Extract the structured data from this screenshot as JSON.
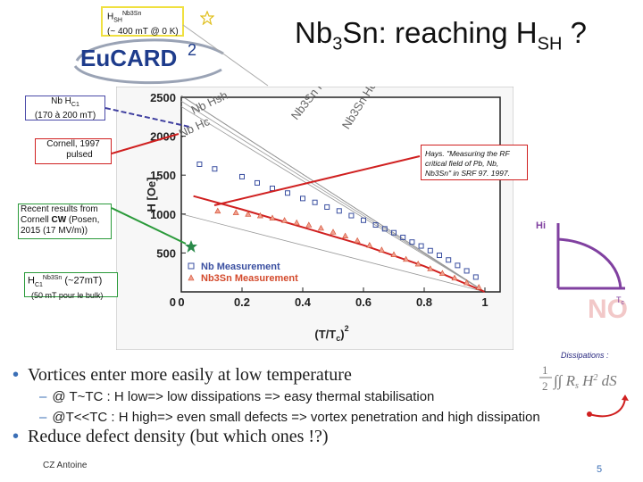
{
  "title": {
    "main": "Nb",
    "sub3": "3",
    "mid": "Sn: reaching H",
    "subSH": "SH",
    "end": " ?"
  },
  "logo": {
    "text": "EuCARD",
    "sup": "2"
  },
  "hsh_box": {
    "line1_main": "H",
    "line1_sub": "SH",
    "line1_sup": "Nb3Sn",
    "line2": "(~ 400 mT @ 0 K)"
  },
  "nb_hc1_box": {
    "line1_main": "Nb H",
    "line1_sub": "C1",
    "line2": "(170 à 200 mT)"
  },
  "cornell_box": {
    "line1": "Cornell, 1997",
    "line2": "pulsed"
  },
  "recent_box": {
    "line1": "Recent results from",
    "line2_a": "Cornell ",
    "line2_b": "CW",
    "line2_c": " (Posen,",
    "line3": "2015 (17 MV/m))"
  },
  "hc1_box": {
    "main": "H",
    "sub": "C1",
    "sup": "Nb3Sn",
    "rest": " (~27mT)",
    "line2": "(50 mT pour le bulk)"
  },
  "hays_box": {
    "text": "Hays. \"Measuring the RF critical field of Pb, Nb, Nb3Sn\" in SRF 97. 1997."
  },
  "inset": {
    "ylabel": "Hi",
    "xlabel": "T",
    "xsub": "c",
    "overlay": "NO"
  },
  "dissipations": {
    "label": "Dissipations :",
    "formula_frac_num": "1",
    "formula_frac_den": "2",
    "formula_body": "∫∫ R",
    "formula_s": "s",
    "formula_h": " H",
    "formula_sq": "2",
    "formula_ds": " dS"
  },
  "bullets": [
    {
      "text": "Vortices enter more easily at low temperature"
    },
    {
      "text": "@ T~TC : H low=> low dissipations => easy thermal stabilisation"
    },
    {
      "text": "@T<<TC : H high=> even small defects => vortex penetration and high dissipation"
    },
    {
      "text": "Reduce defect density (but which ones !?)"
    }
  ],
  "footer": {
    "name": "CZ Antoine",
    "page": "5"
  },
  "chart_data": {
    "type": "scatter",
    "xlabel": "(T/T",
    "xlabel_sub": "c",
    "xlabel_sup": "2",
    "xlabel_close": ")",
    "ylabel": "H [Oe]",
    "xlim": [
      0,
      1.05
    ],
    "ylim": [
      0,
      2500
    ],
    "x_ticks": [
      "0",
      "0.2",
      "0.4",
      "0.6",
      "0.8",
      "1"
    ],
    "y_ticks": [
      "500",
      "1000",
      "1500",
      "2000",
      "2500"
    ],
    "line_labels": [
      "Nb Hsh",
      "Nb Hc",
      "Nb3Sn Hsh",
      "Nb3Sn Hc"
    ],
    "series": [
      {
        "name": "Nb Measurement",
        "marker": "square",
        "color": "#3a4fa0",
        "points": [
          [
            0.06,
            1640
          ],
          [
            0.11,
            1580
          ],
          [
            0.2,
            1480
          ],
          [
            0.25,
            1400
          ],
          [
            0.3,
            1330
          ],
          [
            0.35,
            1270
          ],
          [
            0.4,
            1200
          ],
          [
            0.44,
            1150
          ],
          [
            0.48,
            1090
          ],
          [
            0.52,
            1040
          ],
          [
            0.56,
            980
          ],
          [
            0.6,
            920
          ],
          [
            0.64,
            860
          ],
          [
            0.67,
            810
          ],
          [
            0.7,
            760
          ],
          [
            0.73,
            700
          ],
          [
            0.76,
            640
          ],
          [
            0.79,
            590
          ],
          [
            0.82,
            530
          ],
          [
            0.85,
            470
          ],
          [
            0.88,
            410
          ],
          [
            0.91,
            340
          ],
          [
            0.94,
            270
          ],
          [
            0.97,
            190
          ]
        ]
      },
      {
        "name": "Nb3Sn Measurement",
        "marker": "triangle",
        "color": "#d34a2c",
        "points": [
          [
            0.12,
            1040
          ],
          [
            0.18,
            1020
          ],
          [
            0.22,
            1000
          ],
          [
            0.26,
            980
          ],
          [
            0.3,
            950
          ],
          [
            0.34,
            920
          ],
          [
            0.38,
            890
          ],
          [
            0.42,
            860
          ],
          [
            0.46,
            820
          ],
          [
            0.5,
            770
          ],
          [
            0.54,
            720
          ],
          [
            0.58,
            660
          ],
          [
            0.62,
            600
          ],
          [
            0.66,
            540
          ],
          [
            0.7,
            480
          ],
          [
            0.74,
            420
          ],
          [
            0.78,
            360
          ],
          [
            0.82,
            300
          ],
          [
            0.86,
            240
          ],
          [
            0.9,
            180
          ],
          [
            0.94,
            120
          ],
          [
            0.98,
            60
          ]
        ]
      }
    ],
    "fits": [
      {
        "series": "Nb3Sn Measurement",
        "color": "#d02020",
        "points": [
          [
            0.04,
            1230
          ],
          [
            0.2,
            1060
          ],
          [
            0.4,
            830
          ],
          [
            0.6,
            600
          ],
          [
            0.8,
            330
          ],
          [
            1.0,
            0
          ]
        ]
      }
    ]
  }
}
